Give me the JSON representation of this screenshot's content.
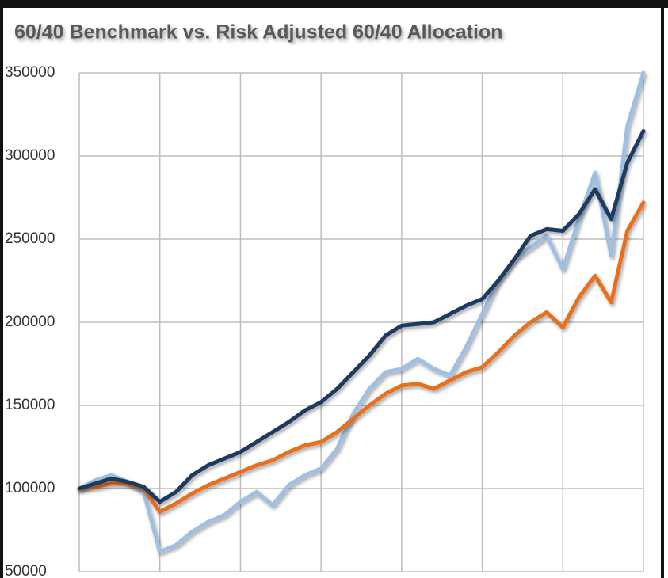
{
  "chart_data": {
    "type": "line",
    "title": "60/40 Benchmark vs. Risk Adjusted 60/40 Allocation",
    "categories": [
      null,
      null,
      null,
      null,
      null,
      null,
      null,
      null,
      null,
      null,
      null,
      null,
      null,
      null,
      null,
      null,
      null,
      null,
      null,
      null,
      null,
      null,
      null,
      null,
      null,
      null,
      null,
      null,
      null,
      null,
      null,
      null,
      null,
      null,
      null,
      null
    ],
    "series": [
      {
        "color": "#9dc0e4",
        "values": [
          100000,
          105000,
          108000,
          104000,
          98000,
          62000,
          66000,
          74000,
          80000,
          84000,
          92000,
          98000,
          90000,
          102000,
          108000,
          112000,
          124000,
          145000,
          160000,
          170000,
          172000,
          178000,
          172000,
          168000,
          185000,
          205000,
          225000,
          238000,
          245000,
          252000,
          232000,
          262000,
          290000,
          240000,
          318000,
          350000
        ]
      },
      {
        "color": "#e8701e",
        "values": [
          100000,
          101000,
          103000,
          103000,
          100000,
          86000,
          91000,
          97000,
          102000,
          106000,
          110000,
          114000,
          117000,
          122000,
          126000,
          128000,
          134000,
          142000,
          150000,
          157000,
          162000,
          163000,
          160000,
          165000,
          170000,
          173000,
          182000,
          192000,
          200000,
          206000,
          197000,
          215000,
          228000,
          212000,
          255000,
          272000
        ]
      },
      {
        "color": "#1f3a63",
        "values": [
          100000,
          103000,
          106000,
          104000,
          101000,
          92000,
          98000,
          108000,
          114000,
          118000,
          122000,
          128000,
          134000,
          140000,
          147000,
          152000,
          160000,
          170000,
          180000,
          192000,
          198000,
          199000,
          200000,
          205000,
          210000,
          214000,
          225000,
          238000,
          252000,
          256000,
          255000,
          265000,
          280000,
          262000,
          296000,
          315000
        ]
      }
    ],
    "ylim": [
      50000,
      350000
    ],
    "yticks": [
      50000,
      100000,
      150000,
      200000,
      250000,
      300000,
      350000
    ],
    "grid": true
  }
}
